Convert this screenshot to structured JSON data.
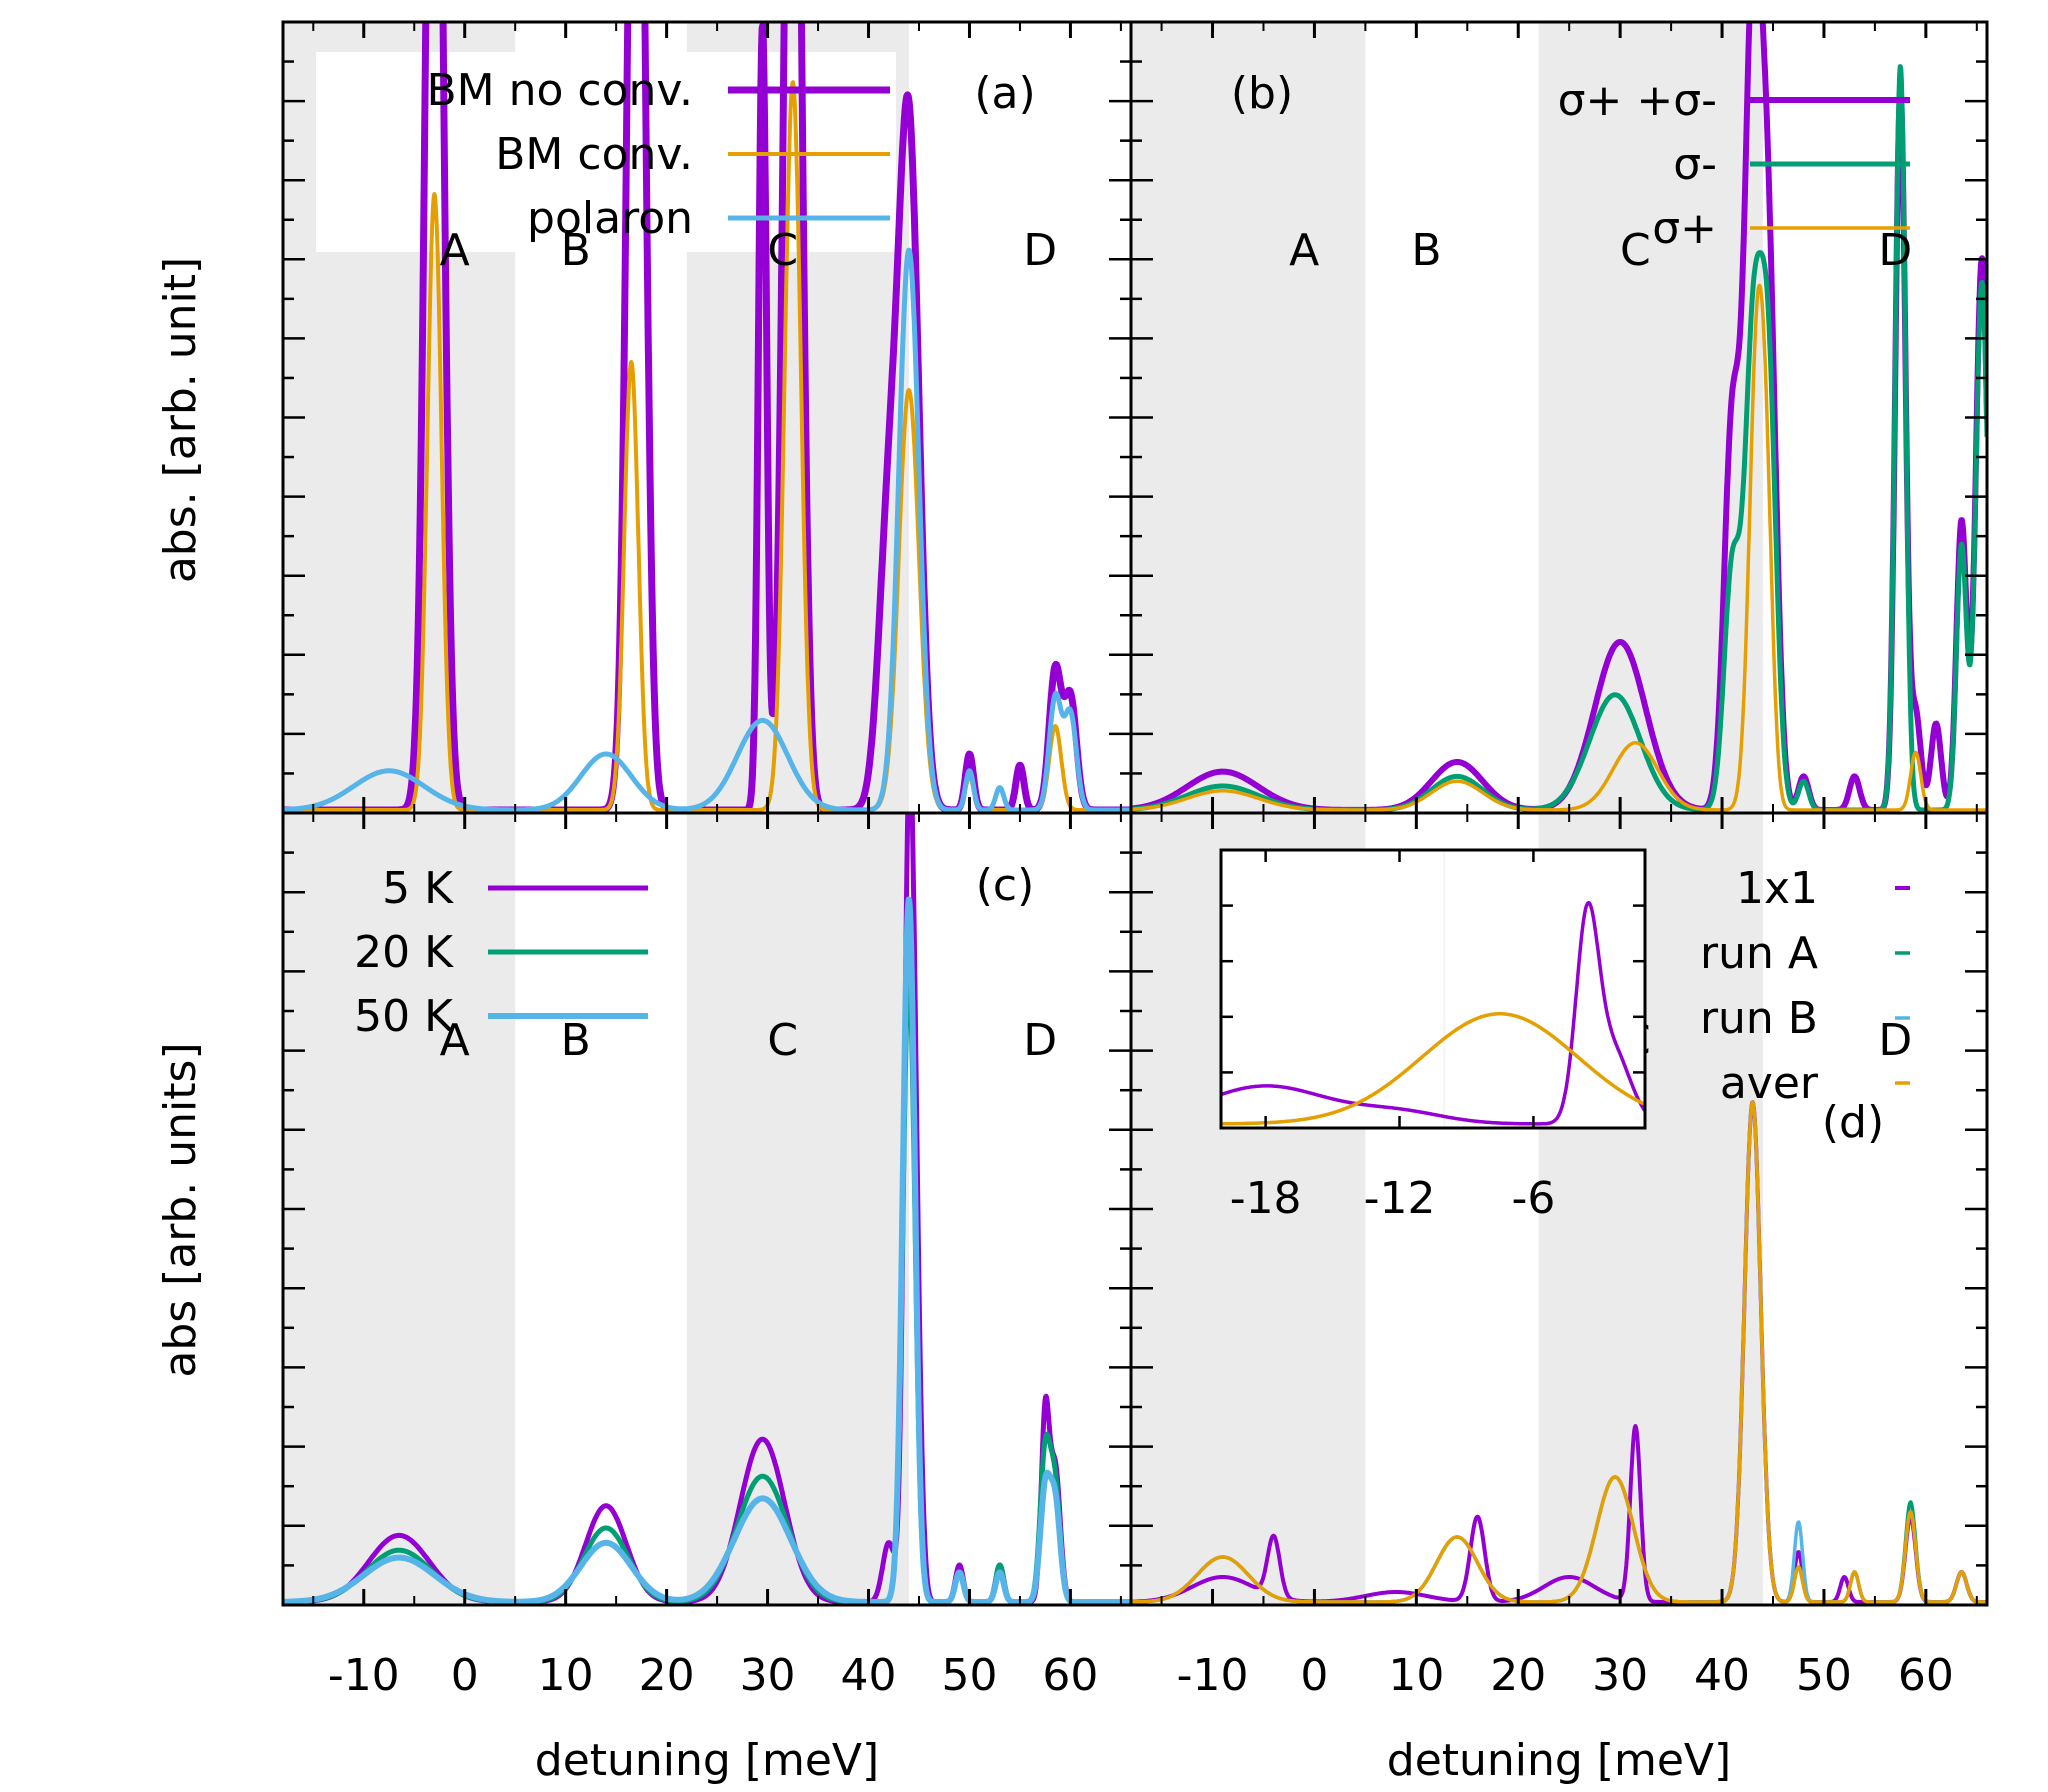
{
  "figure": {
    "xlabel": "detuning [meV]",
    "region_labels": [
      "A",
      "B",
      "C",
      "D"
    ]
  },
  "colors": {
    "purple": "#9400d3",
    "green": "#009e73",
    "skyblue": "#56b4e9",
    "orange": "#e69f00",
    "shade": "#ebebeb"
  },
  "chart_data": [
    {
      "panel_label": "(a)",
      "type": "line",
      "ylabel": "abs. [arb. unit]",
      "xlim": [
        -18,
        66
      ],
      "xticks": [
        -10,
        0,
        10,
        20,
        30,
        40,
        50,
        60
      ],
      "shaded_regions": [
        [
          -18,
          5
        ],
        [
          22,
          44
        ]
      ],
      "legend_position": "top-left",
      "series": [
        {
          "name": "BM no conv.",
          "color": "#9400d3",
          "peaks": [
            [
              -3,
              2.5,
              0.8
            ],
            [
              17,
              2.5,
              0.8
            ],
            [
              29.5,
              1.4,
              0.4
            ],
            [
              32.5,
              2.5,
              0.8
            ],
            [
              42,
              0.5,
              1.0
            ],
            [
              44,
              1.2,
              1.0
            ],
            [
              50,
              0.1,
              0.4
            ],
            [
              55,
              0.08,
              0.4
            ],
            [
              58.5,
              0.25,
              0.6
            ],
            [
              60,
              0.2,
              0.6
            ]
          ]
        },
        {
          "name": "BM conv.",
          "color": "#e69f00",
          "peaks": [
            [
              -3,
              1.1,
              0.7
            ],
            [
              16.5,
              0.8,
              0.7
            ],
            [
              32.5,
              1.3,
              0.8
            ],
            [
              44,
              0.75,
              1.0
            ],
            [
              50,
              0.06,
              0.4
            ],
            [
              58.5,
              0.15,
              0.6
            ]
          ]
        },
        {
          "name": "polaron",
          "color": "#56b4e9",
          "peaks": [
            [
              -7.5,
              0.07,
              3.5
            ],
            [
              14,
              0.1,
              2.5
            ],
            [
              29.5,
              0.16,
              2.5
            ],
            [
              44,
              1.0,
              1.0
            ],
            [
              50,
              0.07,
              0.4
            ],
            [
              53,
              0.04,
              0.4
            ],
            [
              58.5,
              0.2,
              0.6
            ],
            [
              60,
              0.17,
              0.6
            ]
          ]
        }
      ]
    },
    {
      "panel_label": "(b)",
      "type": "line",
      "xlim": [
        -18,
        66
      ],
      "xticks": [
        -10,
        0,
        10,
        20,
        30,
        40,
        50,
        60
      ],
      "shaded_regions": [
        [
          -18,
          5
        ],
        [
          22,
          44
        ]
      ],
      "legend_position": "top-right",
      "series": [
        {
          "name": "σ+ +σ-",
          "color": "#9400d3",
          "peaks": [
            [
              -9,
              0.08,
              3.5
            ],
            [
              14,
              0.1,
              2.5
            ],
            [
              30,
              0.35,
              2.5
            ],
            [
              41,
              0.8,
              0.8
            ],
            [
              43,
              1.6,
              0.8
            ],
            [
              44.5,
              1.1,
              0.8
            ],
            [
              48,
              0.07,
              0.5
            ],
            [
              53,
              0.07,
              0.5
            ],
            [
              57.5,
              1.5,
              0.5
            ],
            [
              59,
              0.2,
              0.5
            ],
            [
              61,
              0.18,
              0.5
            ],
            [
              63.5,
              0.6,
              0.5
            ],
            [
              65.5,
              1.15,
              0.6
            ]
          ]
        },
        {
          "name": "σ-",
          "color": "#009e73",
          "peaks": [
            [
              -9,
              0.05,
              3.5
            ],
            [
              14,
              0.07,
              2.5
            ],
            [
              29.5,
              0.24,
              2.5
            ],
            [
              41,
              0.5,
              0.8
            ],
            [
              43,
              0.9,
              0.8
            ],
            [
              44.5,
              0.9,
              0.8
            ],
            [
              48,
              0.06,
              0.5
            ],
            [
              57.5,
              1.55,
              0.5
            ],
            [
              63.5,
              0.55,
              0.5
            ],
            [
              65.5,
              1.1,
              0.6
            ]
          ]
        },
        {
          "name": "σ+",
          "color": "#e69f00",
          "peaks": [
            [
              -9,
              0.04,
              3.5
            ],
            [
              14,
              0.06,
              2.5
            ],
            [
              31.5,
              0.14,
              2.2
            ],
            [
              43.5,
              1.0,
              0.8
            ],
            [
              44.5,
              0.3,
              0.6
            ],
            [
              59,
              0.12,
              0.5
            ]
          ]
        }
      ]
    },
    {
      "panel_label": "(c)",
      "type": "line",
      "ylabel": "abs [arb. units]",
      "xlim": [
        -18,
        66
      ],
      "xticks": [
        -10,
        0,
        10,
        20,
        30,
        40,
        50,
        60
      ],
      "shaded_regions": [
        [
          -18,
          5
        ],
        [
          22,
          44
        ]
      ],
      "legend_position": "top-left",
      "series": [
        {
          "name": "5 K",
          "color": "#9400d3",
          "peaks": [
            [
              -6.5,
              0.09,
              3.0
            ],
            [
              14,
              0.13,
              2.0
            ],
            [
              29.5,
              0.22,
              2.2
            ],
            [
              42,
              0.08,
              0.6
            ],
            [
              44,
              1.0,
              0.5
            ],
            [
              44.7,
              0.35,
              0.5
            ],
            [
              49,
              0.05,
              0.4
            ],
            [
              53,
              0.05,
              0.4
            ],
            [
              57.5,
              0.25,
              0.4
            ],
            [
              58.5,
              0.18,
              0.5
            ]
          ]
        },
        {
          "name": "20 K",
          "color": "#009e73",
          "peaks": [
            [
              -6.5,
              0.07,
              3.2
            ],
            [
              14,
              0.1,
              2.2
            ],
            [
              29.5,
              0.17,
              2.5
            ],
            [
              44,
              0.85,
              0.6
            ],
            [
              49,
              0.04,
              0.4
            ],
            [
              53,
              0.05,
              0.4
            ],
            [
              57.5,
              0.2,
              0.5
            ],
            [
              58.5,
              0.15,
              0.5
            ]
          ]
        },
        {
          "name": "50 K",
          "color": "#56b4e9",
          "peaks": [
            [
              -6.5,
              0.06,
              3.5
            ],
            [
              14,
              0.08,
              2.5
            ],
            [
              29.5,
              0.14,
              2.8
            ],
            [
              44,
              0.95,
              0.6
            ],
            [
              49,
              0.04,
              0.4
            ],
            [
              53,
              0.04,
              0.4
            ],
            [
              57.5,
              0.15,
              0.5
            ],
            [
              58.5,
              0.13,
              0.5
            ]
          ]
        }
      ]
    },
    {
      "panel_label": "(d)",
      "type": "line",
      "xlim": [
        -18,
        66
      ],
      "xticks": [
        -10,
        0,
        10,
        20,
        30,
        40,
        50,
        60
      ],
      "shaded_regions": [
        [
          -18,
          5
        ],
        [
          22,
          44
        ]
      ],
      "legend_position": "top-right",
      "series": [
        {
          "name": "1x1",
          "color": "#9400d3",
          "peaks": [
            [
              -9,
              0.05,
              3.0
            ],
            [
              -4,
              0.12,
              0.6
            ],
            [
              8,
              0.02,
              3.0
            ],
            [
              16,
              0.17,
              0.7
            ],
            [
              25,
              0.05,
              2.5
            ],
            [
              31.5,
              0.35,
              0.5
            ],
            [
              43,
              1.0,
              0.8
            ],
            [
              47.5,
              0.1,
              0.4
            ],
            [
              52,
              0.05,
              0.4
            ],
            [
              58.5,
              0.17,
              0.5
            ],
            [
              63.5,
              0.06,
              0.5
            ]
          ]
        },
        {
          "name": "run A",
          "color": "#009e73",
          "peaks": [
            [
              -9,
              0.09,
              2.5
            ],
            [
              14,
              0.13,
              2.0
            ],
            [
              29.5,
              0.25,
              1.8
            ],
            [
              43,
              1.0,
              0.8
            ],
            [
              47.5,
              0.07,
              0.4
            ],
            [
              53,
              0.06,
              0.4
            ],
            [
              58.5,
              0.2,
              0.5
            ],
            [
              63.5,
              0.06,
              0.5
            ]
          ]
        },
        {
          "name": "run B",
          "color": "#56b4e9",
          "peaks": [
            [
              -9,
              0.09,
              2.5
            ],
            [
              14,
              0.13,
              2.0
            ],
            [
              29.5,
              0.25,
              1.8
            ],
            [
              43,
              1.0,
              0.8
            ],
            [
              47.5,
              0.16,
              0.4
            ],
            [
              53,
              0.06,
              0.4
            ],
            [
              58.5,
              0.18,
              0.5
            ],
            [
              63.5,
              0.06,
              0.5
            ]
          ]
        },
        {
          "name": "aver",
          "color": "#e69f00",
          "peaks": [
            [
              -9,
              0.09,
              2.5
            ],
            [
              14,
              0.13,
              2.0
            ],
            [
              29.5,
              0.25,
              1.8
            ],
            [
              43,
              1.0,
              0.8
            ],
            [
              47.5,
              0.07,
              0.4
            ],
            [
              53,
              0.06,
              0.4
            ],
            [
              58.5,
              0.18,
              0.5
            ],
            [
              63.5,
              0.06,
              0.5
            ]
          ]
        }
      ],
      "inset": {
        "xlim": [
          -20,
          -1
        ],
        "xticks": [
          -18,
          -12,
          -6
        ],
        "series": [
          {
            "name": "1x1",
            "color": "#9400d3",
            "peaks": [
              [
                -18,
                0.2,
                2.8
              ],
              [
                -12,
                0.06,
                2.0
              ],
              [
                -3.6,
                1.0,
                0.5
              ],
              [
                -2.5,
                0.4,
                0.8
              ]
            ]
          },
          {
            "name": "aver",
            "color": "#e69f00",
            "peaks": [
              [
                -7.5,
                0.58,
                3.5
              ]
            ]
          }
        ]
      }
    }
  ]
}
